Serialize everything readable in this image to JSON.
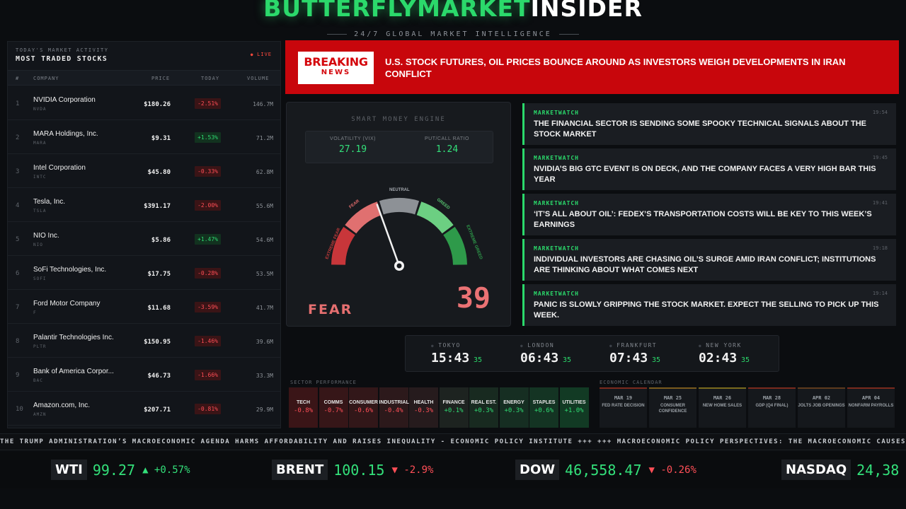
{
  "brand": {
    "part1": "BUTTERFLYMARKET",
    "part2": "INSIDER",
    "tagline": "24/7 GLOBAL MARKET INTELLIGENCE"
  },
  "stocks": {
    "kicker": "TODAY'S MARKET ACTIVITY",
    "title": "MOST TRADED STOCKS",
    "live": "LIVE",
    "columns": {
      "num": "#",
      "company": "COMPANY",
      "price": "PRICE",
      "today": "TODAY",
      "volume": "VOLUME"
    },
    "rows": [
      {
        "num": "1",
        "name": "NVIDIA Corporation",
        "ticker": "NVDA",
        "price": "$180.26",
        "change": "-2.51%",
        "dir": "down",
        "volume": "146.7M"
      },
      {
        "num": "2",
        "name": "MARA Holdings, Inc.",
        "ticker": "MARA",
        "price": "$9.31",
        "change": "+1.53%",
        "dir": "up",
        "volume": "71.2M"
      },
      {
        "num": "3",
        "name": "Intel Corporation",
        "ticker": "INTC",
        "price": "$45.80",
        "change": "-0.33%",
        "dir": "down",
        "volume": "62.8M"
      },
      {
        "num": "4",
        "name": "Tesla, Inc.",
        "ticker": "TSLA",
        "price": "$391.17",
        "change": "-2.00%",
        "dir": "down",
        "volume": "55.6M"
      },
      {
        "num": "5",
        "name": "NIO Inc.",
        "ticker": "NIO",
        "price": "$5.86",
        "change": "+1.47%",
        "dir": "up",
        "volume": "54.6M"
      },
      {
        "num": "6",
        "name": "SoFi Technologies, Inc.",
        "ticker": "SOFI",
        "price": "$17.75",
        "change": "-0.28%",
        "dir": "down",
        "volume": "53.5M"
      },
      {
        "num": "7",
        "name": "Ford Motor Company",
        "ticker": "F",
        "price": "$11.68",
        "change": "-3.59%",
        "dir": "down",
        "volume": "41.7M"
      },
      {
        "num": "8",
        "name": "Palantir Technologies Inc.",
        "ticker": "PLTR",
        "price": "$150.95",
        "change": "-1.46%",
        "dir": "down",
        "volume": "39.6M"
      },
      {
        "num": "9",
        "name": "Bank of America Corpor...",
        "ticker": "BAC",
        "price": "$46.73",
        "change": "-1.66%",
        "dir": "down",
        "volume": "33.3M"
      },
      {
        "num": "10",
        "name": "Amazon.com, Inc.",
        "ticker": "AMZN",
        "price": "$207.71",
        "change": "-0.81%",
        "dir": "down",
        "volume": "29.9M"
      }
    ]
  },
  "breaking": {
    "badge_top": "BREAKING",
    "badge_bottom": "NEWS",
    "headline": "U.S. STOCK FUTURES, OIL PRICES BOUNCE AROUND AS INVESTORS WEIGH DEVELOPMENTS IN IRAN CONFLICT"
  },
  "engine": {
    "label": "SMART MONEY ENGINE",
    "vix_label": "VOLATILITY (VIX)",
    "vix_value": "27.19",
    "pc_label": "PUT/CALL RATIO",
    "pc_value": "1.24",
    "zones": {
      "extreme_fear": "EXTREME FEAR",
      "fear": "FEAR",
      "neutral": "NEUTRAL",
      "greed": "GREED",
      "extreme_greed": "EXTREME GREED"
    },
    "sentiment": "FEAR",
    "score": "39",
    "score_value": 39
  },
  "news": [
    {
      "source": "MARKETWATCH",
      "time": "19:54",
      "text": "THE FINANCIAL SECTOR IS SENDING SOME SPOOKY TECHNICAL SIGNALS ABOUT THE STOCK MARKET"
    },
    {
      "source": "MARKETWATCH",
      "time": "19:45",
      "text": "NVIDIA’S BIG GTC EVENT IS ON DECK, AND THE COMPANY FACES A VERY HIGH BAR THIS YEAR"
    },
    {
      "source": "MARKETWATCH",
      "time": "19:41",
      "text": "‘IT’S ALL ABOUT OIL’: FEDEX’S TRANSPORTATION COSTS WILL BE KEY TO THIS WEEK’S EARNINGS"
    },
    {
      "source": "MARKETWATCH",
      "time": "19:18",
      "text": "INDIVIDUAL INVESTORS ARE CHASING OIL’S SURGE AMID IRAN CONFLICT; INSTITUTIONS ARE THINKING ABOUT WHAT COMES NEXT"
    },
    {
      "source": "MARKETWATCH",
      "time": "19:14",
      "text": "PANIC IS SLOWLY GRIPPING THE STOCK MARKET. EXPECT THE SELLING TO PICK UP THIS WEEK."
    }
  ],
  "clocks": [
    {
      "city": "TOKYO",
      "hm": "15:43",
      "sec": "35"
    },
    {
      "city": "LONDON",
      "hm": "06:43",
      "sec": "35"
    },
    {
      "city": "FRANKFURT",
      "hm": "07:43",
      "sec": "35"
    },
    {
      "city": "NEW YORK",
      "hm": "02:43",
      "sec": "35"
    }
  ],
  "sectors": {
    "title": "SECTOR PERFORMANCE",
    "items": [
      {
        "name": "TECH",
        "value": "-0.8%",
        "dir": "neg",
        "bg": "#3a1517"
      },
      {
        "name": "COMMS",
        "value": "-0.7%",
        "dir": "neg",
        "bg": "#361618"
      },
      {
        "name": "CONSUMER",
        "value": "-0.6%",
        "dir": "neg",
        "bg": "#321719"
      },
      {
        "name": "INDUSTRIAL",
        "value": "-0.4%",
        "dir": "neg",
        "bg": "#2c191b"
      },
      {
        "name": "HEALTH",
        "value": "-0.3%",
        "dir": "neg",
        "bg": "#261b1d"
      },
      {
        "name": "FINANCE",
        "value": "+0.1%",
        "dir": "pos",
        "bg": "#1d2320"
      },
      {
        "name": "REAL EST.",
        "value": "+0.3%",
        "dir": "pos",
        "bg": "#182a20"
      },
      {
        "name": "ENERGY",
        "value": "+0.3%",
        "dir": "pos",
        "bg": "#162e22"
      },
      {
        "name": "STAPLES",
        "value": "+0.6%",
        "dir": "pos",
        "bg": "#143423"
      },
      {
        "name": "UTILITIES",
        "value": "+1.0%",
        "dir": "pos",
        "bg": "#123a24"
      }
    ]
  },
  "calendar": {
    "title": "ECONOMIC CALENDAR",
    "items": [
      {
        "date": "MAR 19",
        "event": "FED RATE DECISION",
        "accent": "#7a2a1e"
      },
      {
        "date": "MAR 25",
        "event": "CONSUMER CONFIDENCE",
        "accent": "#7a5a1e"
      },
      {
        "date": "MAR 26",
        "event": "NEW HOME SALES",
        "accent": "#7a6a1e"
      },
      {
        "date": "MAR 28",
        "event": "GDP (Q4 FINAL)",
        "accent": "#7a2a1e"
      },
      {
        "date": "APR 02",
        "event": "JOLTS JOB OPENINGS",
        "accent": "#5e3a1e"
      },
      {
        "date": "APR 04",
        "event": "NONFARM PAYROLLS",
        "accent": "#7a2a1e"
      }
    ]
  },
  "ticker_text": "THE TRUMP ADMINISTRATION’S MACROECONOMIC AGENDA HARMS AFFORDABILITY AND RAISES INEQUALITY - ECONOMIC POLICY INSTITUTE +++ +++ MACROECONOMIC POLICY PERSPECTIVES: THE MACROECONOMIC CAUSES AND CONSEQUENCES",
  "quotes": [
    {
      "symbol": "WTI",
      "price": "99.27",
      "change": "▲ +0.57%",
      "dir": "up"
    },
    {
      "symbol": "BRENT",
      "price": "100.15",
      "change": "▼ -2.9%",
      "dir": "down"
    },
    {
      "symbol": "DOW",
      "price": "46,558.47",
      "change": "▼ -0.26%",
      "dir": "down"
    },
    {
      "symbol": "NASDAQ",
      "price": "24,38",
      "change": "",
      "dir": "up"
    }
  ]
}
